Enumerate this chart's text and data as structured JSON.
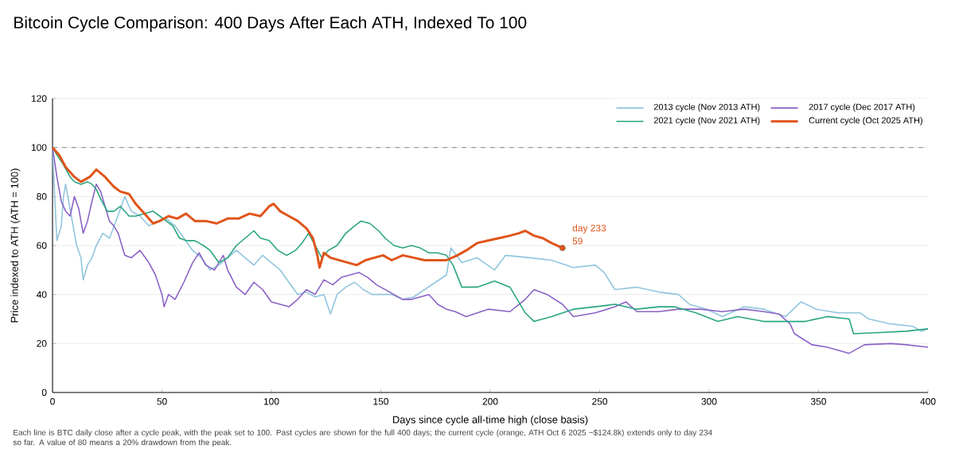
{
  "chart_data": {
    "type": "line",
    "title": "Bitcoin Cycle Comparison: 400 Days After Each ATH, Indexed To 100",
    "xlabel": "Days since cycle all-time high (close basis)",
    "ylabel": "Price indexed to ATH (ATH = 100)",
    "xlim": [
      0,
      400
    ],
    "ylim": [
      0,
      120
    ],
    "xticks": [
      0,
      50,
      100,
      150,
      200,
      250,
      300,
      350,
      400
    ],
    "yticks": [
      0,
      20,
      40,
      60,
      80,
      100,
      120
    ],
    "grid": "y",
    "legend": "top right",
    "marker": "none",
    "line_style": "solid",
    "ref_lines": [
      {
        "axis": "y",
        "value": 100,
        "color": "#9a9a9a",
        "line_style": "dashed"
      }
    ],
    "annotations": [
      {
        "text": "day 233",
        "x": 233,
        "y": 59
      },
      {
        "text": "59",
        "x": 233,
        "y": 59
      },
      "Each line is BTC daily close after a cycle peak, with the peak set to 100. Past cycles are shown for the full 400 days; the current cycle (orange, ATH Oct 6 2025 ~$124.8k) extends only to day 234 so far. A value of 80 means a 20% drawdown from the peak."
    ],
    "series": [
      {
        "name": "2013 cycle (Nov 2013 ATH)",
        "color": "#92c5de",
        "x": [
          0,
          1,
          2,
          4,
          5,
          6,
          8,
          11,
          13,
          14,
          16,
          18,
          20,
          23,
          26,
          29,
          33,
          36,
          40,
          44,
          48,
          52,
          56,
          60,
          64,
          68,
          72,
          76,
          80,
          84,
          88,
          92,
          96,
          100,
          104,
          108,
          112,
          116,
          120,
          124,
          127,
          130,
          134,
          138,
          142,
          146,
          150,
          155,
          160,
          165,
          170,
          175,
          180,
          182,
          187,
          194,
          202,
          207,
          218,
          228,
          238,
          248,
          252,
          257,
          267,
          277,
          286,
          291,
          299,
          306,
          316,
          325,
          335,
          342,
          349,
          359,
          369,
          373,
          383,
          393,
          397,
          400
        ],
        "values": [
          100,
          80,
          62,
          68,
          80,
          85,
          75,
          60,
          55,
          46,
          52,
          55,
          60,
          65,
          63,
          70,
          80,
          74,
          72,
          68,
          70,
          71,
          68,
          63,
          58,
          55,
          50,
          52,
          55,
          58,
          55,
          52,
          56,
          53,
          50,
          45,
          40,
          41,
          39,
          40,
          32,
          40,
          43,
          45,
          42,
          40,
          40,
          40,
          38,
          39,
          42,
          45,
          48,
          59,
          53,
          55,
          50,
          56,
          55,
          54,
          51,
          52,
          49,
          42,
          43,
          41,
          40,
          36,
          34,
          31,
          35,
          34,
          31,
          37,
          34,
          32.5,
          32.5,
          30,
          28,
          27,
          25,
          26
        ]
      },
      {
        "name": "2017 cycle (Dec 2017 ATH)",
        "color": "#8b63c6",
        "x": [
          0,
          2,
          4,
          6,
          8,
          10,
          12,
          14,
          16,
          18,
          20,
          22,
          24,
          26,
          28,
          30,
          33,
          36,
          40,
          44,
          47,
          50,
          51,
          53,
          56,
          60,
          64,
          67,
          70,
          74,
          78,
          80,
          84,
          88,
          92,
          96,
          100,
          104,
          108,
          112,
          116,
          120,
          124,
          128,
          132,
          136,
          140,
          144,
          148,
          152,
          156,
          160,
          164,
          168,
          172,
          176,
          180,
          184,
          189,
          199,
          209,
          216,
          220,
          226,
          233,
          238,
          248,
          257,
          262,
          267,
          277,
          286,
          296,
          306,
          316,
          325,
          332,
          337,
          339,
          347,
          354,
          364,
          371,
          383,
          390,
          400
        ],
        "values": [
          100,
          88,
          78,
          74,
          72,
          80,
          75,
          65,
          70,
          78,
          85,
          82,
          76,
          70,
          68,
          65,
          56,
          55,
          58,
          53,
          48,
          40,
          35,
          40,
          38,
          45,
          53,
          57,
          52,
          50,
          56,
          50,
          43,
          40,
          45,
          42,
          37,
          36,
          35,
          38,
          42,
          40,
          46,
          44,
          47,
          48,
          49,
          47,
          44,
          42,
          40,
          38,
          38,
          39,
          40,
          36,
          34,
          33,
          31,
          34,
          33,
          38,
          42,
          40,
          36,
          31,
          32.5,
          35,
          37,
          33,
          33,
          34,
          34,
          33,
          34,
          33,
          32,
          28,
          24,
          19.5,
          18.5,
          16,
          19.5,
          20,
          19.5,
          18.5
        ]
      },
      {
        "name": "2021 cycle (Nov 2021 ATH)",
        "color": "#2aa583",
        "x": [
          0,
          2,
          5,
          8,
          10,
          13,
          16,
          18,
          20,
          22,
          25,
          28,
          31,
          35,
          38,
          42,
          46,
          49,
          52,
          55,
          58,
          61,
          65,
          69,
          72,
          76,
          80,
          84,
          88,
          92,
          95,
          99,
          103,
          107,
          111,
          114,
          117,
          120,
          123,
          126,
          130,
          134,
          138,
          141,
          145,
          149,
          152,
          156,
          160,
          164,
          168,
          172,
          176,
          180,
          183,
          187,
          194,
          202,
          209,
          216,
          220,
          228,
          238,
          248,
          257,
          267,
          277,
          284,
          294,
          304,
          313,
          325,
          335,
          344,
          354,
          364,
          366,
          378,
          390,
          400
        ],
        "values": [
          100,
          97,
          93,
          88,
          86,
          85,
          86,
          85,
          83,
          79,
          74,
          74,
          76,
          72,
          72,
          73,
          74,
          72,
          70,
          68,
          63,
          62,
          62,
          60,
          58,
          53,
          55,
          60,
          63,
          66,
          63,
          62,
          58,
          56,
          58,
          61,
          65,
          60,
          55,
          58,
          60,
          65,
          68,
          70,
          69,
          66,
          63,
          60,
          59,
          60,
          59,
          57,
          57,
          56,
          52,
          43,
          43,
          45.5,
          43,
          32.5,
          29,
          31,
          34,
          35,
          36,
          34,
          35,
          35,
          32.5,
          29,
          31,
          29,
          29,
          29,
          31,
          30,
          24,
          24.5,
          25,
          26
        ]
      },
      {
        "name": "Current cycle (Oct 2025 ATH)",
        "color": "#e0541a",
        "x": [
          0,
          3,
          6,
          10,
          13,
          17,
          20,
          24,
          28,
          31,
          35,
          38,
          42,
          46,
          49,
          53,
          57,
          61,
          65,
          70,
          75,
          80,
          85,
          90,
          95,
          99,
          101,
          104,
          108,
          112,
          116,
          119,
          121,
          122,
          124,
          127,
          131,
          135,
          139,
          143,
          147,
          151,
          155,
          160,
          165,
          170,
          175,
          180,
          185,
          189,
          194,
          199,
          204,
          209,
          213,
          216,
          220,
          224,
          228,
          233
        ],
        "values": [
          100,
          97,
          92,
          88,
          86,
          88,
          91,
          88,
          84,
          82,
          81,
          77,
          73,
          69,
          70,
          72,
          71,
          73,
          70,
          70,
          69,
          71,
          71,
          73,
          72,
          76,
          77,
          74,
          72,
          70,
          67,
          63,
          56,
          51,
          57,
          55,
          54,
          53,
          52,
          54,
          55,
          56,
          54,
          56,
          55,
          54,
          54,
          54,
          56,
          58,
          61,
          62,
          63,
          64,
          65,
          66,
          64,
          63,
          61,
          59
        ]
      }
    ]
  }
}
